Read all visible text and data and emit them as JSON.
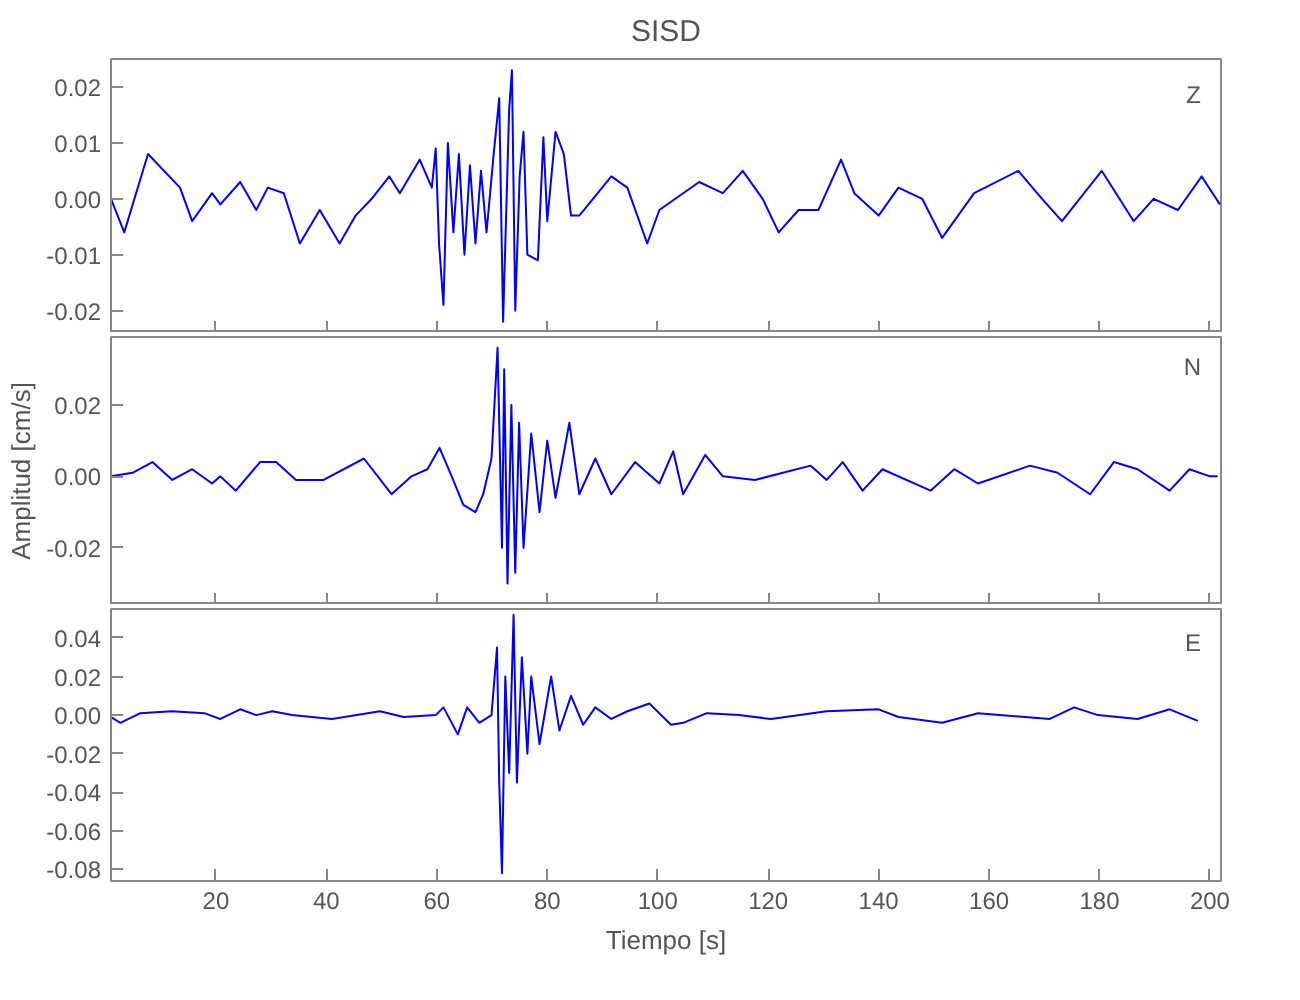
{
  "chart_data": [
    {
      "type": "line",
      "title": "SISD",
      "xlim": [
        1,
        202
      ],
      "ylim": [
        -0.024,
        0.025
      ],
      "tick_labels": "y",
      "grid": false,
      "line_style": "solid",
      "xticks": [
        20,
        40,
        60,
        80,
        100,
        120,
        140,
        160,
        180,
        200
      ],
      "yticks": [
        {
          "value": -0.02,
          "label": "-0.02"
        },
        {
          "value": -0.01,
          "label": "-0.01"
        },
        {
          "value": 0,
          "label": "0.00"
        },
        {
          "value": 0.01,
          "label": "0.01"
        },
        {
          "value": 0.02,
          "label": "0.02"
        }
      ],
      "series": [
        {
          "name": "Z",
          "color": "#0000ff",
          "x": [
            1,
            3.4,
            7.7,
            13.5,
            15.7,
            19.3,
            20.8,
            24.4,
            27.3,
            29.4,
            32.3,
            35.2,
            38.8,
            42.4,
            45.3,
            48.2,
            51.4,
            53.3,
            56.9,
            59.1,
            59.8,
            60.4,
            61.2,
            62,
            63,
            64,
            65,
            66,
            67,
            68,
            69,
            70.3,
            71.3,
            72,
            73.1,
            73.6,
            74.2,
            75,
            75.7,
            76.4,
            78.3,
            79.3,
            80,
            81.5,
            83,
            84.3,
            85.8,
            91.6,
            94.5,
            98.1,
            100.3,
            107.5,
            111.8,
            115.4,
            119,
            121.9,
            125.5,
            129.1,
            133.2,
            135.6,
            140,
            143.6,
            147.9,
            151.5,
            157.3,
            165.3,
            169.6,
            173.2,
            180.4,
            186.2,
            189.8,
            194.2,
            198.5,
            201.8
          ],
          "values": [
            0,
            -0.006,
            0.008,
            0.002,
            -0.004,
            0.001,
            -0.001,
            0.003,
            -0.002,
            0.002,
            0.001,
            -0.008,
            -0.002,
            -0.008,
            -0.003,
            0,
            0.004,
            0.001,
            0.007,
            0.002,
            0.009,
            -0.008,
            -0.019,
            0.01,
            -0.006,
            0.008,
            -0.01,
            0.006,
            -0.008,
            0.005,
            -0.006,
            0.008,
            0.018,
            -0.022,
            0.016,
            0.023,
            -0.02,
            0.004,
            0.012,
            -0.01,
            -0.011,
            0.011,
            -0.004,
            0.012,
            0.008,
            -0.003,
            -0.003,
            0.004,
            0.002,
            -0.008,
            -0.002,
            0.003,
            0.001,
            0.005,
            0,
            -0.006,
            -0.002,
            -0.002,
            0.007,
            0.001,
            -0.003,
            0.002,
            0,
            -0.007,
            0.001,
            0.005,
            0,
            -0.004,
            0.005,
            -0.004,
            0,
            -0.002,
            0.004,
            -0.001
          ]
        }
      ]
    },
    {
      "type": "line",
      "ylabel": "Amplitud [cm/s]",
      "xlim": [
        1,
        202
      ],
      "ylim": [
        -0.036,
        0.039
      ],
      "tick_labels": "y",
      "grid": false,
      "line_style": "solid",
      "xticks": [
        20,
        40,
        60,
        80,
        100,
        120,
        140,
        160,
        180,
        200
      ],
      "yticks": [
        {
          "value": -0.02,
          "label": "-0.02"
        },
        {
          "value": 0,
          "label": "0.00"
        },
        {
          "value": 0.02,
          "label": "0.02"
        }
      ],
      "series": [
        {
          "name": "N",
          "color": "#0000ff",
          "x": [
            1,
            4.9,
            8.5,
            12.1,
            15.7,
            19.3,
            20.8,
            23.6,
            28,
            30.9,
            34.5,
            39.5,
            46.8,
            51.8,
            55.4,
            58.3,
            60.5,
            62.7,
            64.8,
            67,
            68.4,
            69.9,
            71,
            71.8,
            72.2,
            72.8,
            73.5,
            74.2,
            74.9,
            75.7,
            77.1,
            78.6,
            80,
            81.5,
            84,
            85.8,
            88.7,
            91.6,
            95.9,
            100.3,
            102.8,
            104.6,
            108.6,
            111.8,
            117.6,
            127.7,
            130.6,
            133.5,
            137.1,
            140.7,
            149.4,
            153.7,
            158,
            167.4,
            172.4,
            178.3,
            182.6,
            186.9,
            192.7,
            196.3,
            200,
            201.4
          ],
          "values": [
            0,
            0.001,
            0.004,
            -0.001,
            0.002,
            -0.002,
            0,
            -0.004,
            0.004,
            0.004,
            -0.001,
            -0.001,
            0.005,
            -0.005,
            0,
            0.002,
            0.008,
            0,
            -0.008,
            -0.01,
            -0.005,
            0.005,
            0.036,
            -0.02,
            0.03,
            -0.03,
            0.02,
            -0.027,
            0.015,
            -0.02,
            0.012,
            -0.01,
            0.01,
            -0.006,
            0.015,
            -0.005,
            0.005,
            -0.005,
            0.004,
            -0.002,
            0.007,
            -0.005,
            0.006,
            0,
            -0.001,
            0.003,
            -0.001,
            0.004,
            -0.004,
            0.002,
            -0.004,
            0.002,
            -0.002,
            0.003,
            0.001,
            -0.005,
            0.004,
            0.002,
            -0.004,
            0.002,
            0,
            0
          ]
        }
      ]
    },
    {
      "type": "line",
      "xlabel": "Tiempo [s]",
      "xlim": [
        1,
        202
      ],
      "ylim": [
        -0.086,
        0.055
      ],
      "grid": false,
      "line_style": "solid",
      "xticks": [
        20,
        40,
        60,
        80,
        100,
        120,
        140,
        160,
        180,
        200
      ],
      "yticks": [
        {
          "value": -0.08,
          "label": "-0.08"
        },
        {
          "value": -0.06,
          "label": "-0.06"
        },
        {
          "value": -0.04,
          "label": "-0.04"
        },
        {
          "value": -0.02,
          "label": "-0.02"
        },
        {
          "value": 0,
          "label": "0.00"
        },
        {
          "value": 0.02,
          "label": "0.02"
        },
        {
          "value": 0.04,
          "label": "0.04"
        }
      ],
      "series": [
        {
          "name": "E",
          "color": "#0000ff",
          "x": [
            1,
            2.7,
            6.3,
            12,
            17.9,
            20.8,
            24.4,
            27.3,
            30.2,
            33.8,
            41,
            49.7,
            54,
            59.8,
            61.2,
            63.8,
            65.5,
            67.7,
            69.9,
            70.9,
            71.3,
            71.8,
            72.4,
            73.1,
            73.9,
            74.5,
            75.4,
            76.4,
            77.1,
            78.6,
            80.7,
            82.2,
            84.3,
            86.5,
            88.7,
            91.6,
            94.5,
            98.5,
            102.4,
            104.6,
            108.9,
            114.7,
            120.5,
            130.6,
            140,
            143.6,
            151.5,
            158,
            171,
            175.4,
            179.7,
            186.9,
            192.7,
            197.8
          ],
          "values": [
            -0.001,
            -0.004,
            0.001,
            0.002,
            0.001,
            -0.002,
            0.003,
            0,
            0.002,
            0,
            -0.002,
            0.002,
            -0.001,
            0,
            0.004,
            -0.01,
            0.004,
            -0.004,
            0,
            0.035,
            -0.035,
            -0.082,
            0.02,
            -0.03,
            0.052,
            -0.035,
            0.03,
            -0.02,
            0.02,
            -0.015,
            0.02,
            -0.008,
            0.01,
            -0.005,
            0.004,
            -0.002,
            0.002,
            0.006,
            -0.005,
            -0.004,
            0.001,
            0,
            -0.002,
            0.002,
            0.003,
            -0.001,
            -0.004,
            0.001,
            -0.002,
            0.004,
            0,
            -0.002,
            0.003,
            -0.003
          ]
        }
      ]
    }
  ]
}
